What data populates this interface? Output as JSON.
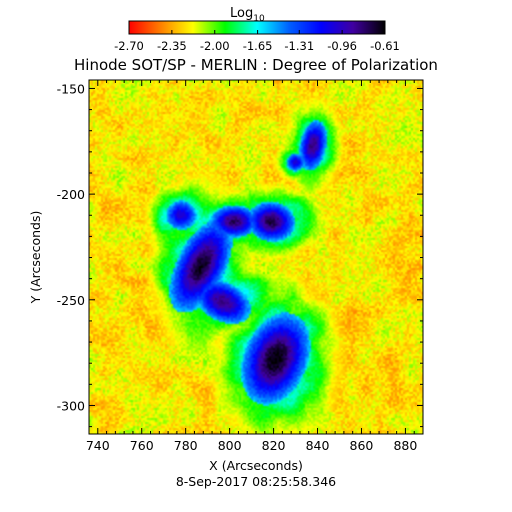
{
  "chart_data": {
    "type": "heatmap",
    "title": "Hinode SOT/SP - MERLIN : Degree of Polarization",
    "date_label": "8-Sep-2017 08:25:58.346",
    "colorbar": {
      "title_main": "Log",
      "title_sub": "10",
      "ticks": [
        "-2.70",
        "-2.35",
        "-2.00",
        "-1.65",
        "-1.31",
        "-0.96",
        "-0.61"
      ],
      "tick_values": [
        -2.7,
        -2.35,
        -2.0,
        -1.65,
        -1.31,
        -0.96,
        -0.61
      ],
      "range": [
        -2.7,
        -0.61
      ],
      "colors": [
        "#ff0000",
        "#ff8000",
        "#ffff00",
        "#00ff00",
        "#00ffff",
        "#0060ff",
        "#0000ff",
        "#4000a0",
        "#000000"
      ]
    },
    "xlabel": "X (Arcseconds)",
    "ylabel": "Y (Arcseconds)",
    "xlim": [
      736,
      888
    ],
    "ylim": [
      -313.5,
      -146
    ],
    "xticks": [
      740,
      760,
      780,
      800,
      820,
      840,
      860,
      880
    ],
    "yticks": [
      -150,
      -200,
      -250,
      -300
    ],
    "features": [
      {
        "x": 787,
        "y": -234,
        "sx": 7,
        "sy": 15,
        "angle": -25,
        "amp": 1.25
      },
      {
        "x": 802,
        "y": -213,
        "sx": 7,
        "sy": 5,
        "angle": 0,
        "amp": 1.15
      },
      {
        "x": 819,
        "y": -213,
        "sx": 7,
        "sy": 6,
        "angle": -10,
        "amp": 1.2
      },
      {
        "x": 797,
        "y": -251,
        "sx": 9,
        "sy": 6,
        "angle": -30,
        "amp": 1.1
      },
      {
        "x": 821,
        "y": -278,
        "sx": 9,
        "sy": 14,
        "angle": -20,
        "amp": 1.3
      },
      {
        "x": 838,
        "y": -177,
        "sx": 4,
        "sy": 8,
        "angle": -10,
        "amp": 1.1
      },
      {
        "x": 830,
        "y": -185,
        "sx": 3,
        "sy": 3,
        "angle": 0,
        "amp": 0.9
      },
      {
        "x": 778,
        "y": -210,
        "sx": 5,
        "sy": 5,
        "angle": 0,
        "amp": 0.9
      }
    ]
  }
}
